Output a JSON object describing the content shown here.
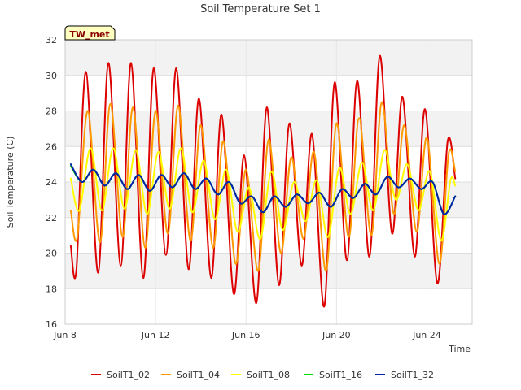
{
  "chart_data": {
    "type": "line",
    "title": "Soil Temperature Set 1",
    "xlabel": "Time",
    "ylabel": "Soil Temperature (C)",
    "badge": "TW_met",
    "x_start": "2024-06-08T00:00",
    "x_end": "2024-06-26T00:00",
    "xticks": [
      {
        "date": "2024-06-08",
        "label": "Jun 8"
      },
      {
        "date": "2024-06-12",
        "label": "Jun 12"
      },
      {
        "date": "2024-06-16",
        "label": "Jun 16"
      },
      {
        "date": "2024-06-20",
        "label": "Jun 20"
      },
      {
        "date": "2024-06-24",
        "label": "Jun 24"
      }
    ],
    "ylim": [
      16,
      32
    ],
    "yticks": [
      16,
      18,
      20,
      22,
      24,
      26,
      28,
      30,
      32
    ],
    "grid": true,
    "legend_position": "bottom",
    "series": [
      {
        "name": "SoilT1_02",
        "color": "#dd0000",
        "values": [
          [
            "2024-06-08T06:00",
            20.4
          ],
          [
            "2024-06-08T12:00",
            19.1
          ],
          [
            "2024-06-08T22:00",
            30.2
          ],
          [
            "2024-06-09T11:00",
            18.9
          ],
          [
            "2024-06-09T22:00",
            30.7
          ],
          [
            "2024-06-10T11:00",
            19.3
          ],
          [
            "2024-06-10T22:00",
            30.7
          ],
          [
            "2024-06-11T11:00",
            18.6
          ],
          [
            "2024-06-11T22:00",
            30.4
          ],
          [
            "2024-06-12T11:00",
            19.9
          ],
          [
            "2024-06-12T22:00",
            30.4
          ],
          [
            "2024-06-13T11:00",
            19.1
          ],
          [
            "2024-06-13T22:00",
            28.7
          ],
          [
            "2024-06-14T11:00",
            18.6
          ],
          [
            "2024-06-14T22:00",
            27.8
          ],
          [
            "2024-06-15T11:00",
            17.7
          ],
          [
            "2024-06-15T22:00",
            25.5
          ],
          [
            "2024-06-16T11:00",
            17.2
          ],
          [
            "2024-06-16T22:00",
            28.2
          ],
          [
            "2024-06-17T11:00",
            18.2
          ],
          [
            "2024-06-17T22:00",
            27.3
          ],
          [
            "2024-06-18T11:00",
            19.3
          ],
          [
            "2024-06-18T22:00",
            26.7
          ],
          [
            "2024-06-19T11:00",
            17.0
          ],
          [
            "2024-06-19T22:00",
            29.6
          ],
          [
            "2024-06-20T11:00",
            19.6
          ],
          [
            "2024-06-20T22:00",
            29.7
          ],
          [
            "2024-06-21T11:00",
            19.8
          ],
          [
            "2024-06-21T22:00",
            31.1
          ],
          [
            "2024-06-22T11:00",
            21.1
          ],
          [
            "2024-06-22T22:00",
            28.8
          ],
          [
            "2024-06-23T11:00",
            19.8
          ],
          [
            "2024-06-23T22:00",
            28.1
          ],
          [
            "2024-06-24T11:00",
            18.3
          ],
          [
            "2024-06-24T22:00",
            26.3
          ],
          [
            "2024-06-25T06:00",
            24.2
          ]
        ]
      },
      {
        "name": "SoilT1_04",
        "color": "#ff9900",
        "values": [
          [
            "2024-06-08T06:00",
            22.4
          ],
          [
            "2024-06-08T13:00",
            20.9
          ],
          [
            "2024-06-09T00:00",
            28.0
          ],
          [
            "2024-06-09T13:00",
            20.6
          ],
          [
            "2024-06-10T00:00",
            28.4
          ],
          [
            "2024-06-10T13:00",
            20.9
          ],
          [
            "2024-06-11T00:00",
            28.2
          ],
          [
            "2024-06-11T13:00",
            20.3
          ],
          [
            "2024-06-12T00:00",
            28.0
          ],
          [
            "2024-06-12T13:00",
            21.1
          ],
          [
            "2024-06-13T00:00",
            28.3
          ],
          [
            "2024-06-13T13:00",
            20.7
          ],
          [
            "2024-06-14T00:00",
            27.2
          ],
          [
            "2024-06-14T13:00",
            20.3
          ],
          [
            "2024-06-15T00:00",
            26.3
          ],
          [
            "2024-06-15T13:00",
            19.4
          ],
          [
            "2024-06-16T00:00",
            24.7
          ],
          [
            "2024-06-16T13:00",
            19.0
          ],
          [
            "2024-06-17T00:00",
            26.4
          ],
          [
            "2024-06-17T13:00",
            20.0
          ],
          [
            "2024-06-18T00:00",
            25.4
          ],
          [
            "2024-06-18T13:00",
            20.8
          ],
          [
            "2024-06-19T00:00",
            25.7
          ],
          [
            "2024-06-19T13:00",
            19.0
          ],
          [
            "2024-06-20T00:00",
            27.3
          ],
          [
            "2024-06-20T13:00",
            20.9
          ],
          [
            "2024-06-21T00:00",
            27.6
          ],
          [
            "2024-06-21T13:00",
            21.0
          ],
          [
            "2024-06-22T00:00",
            28.5
          ],
          [
            "2024-06-22T13:00",
            22.2
          ],
          [
            "2024-06-23T00:00",
            27.2
          ],
          [
            "2024-06-23T13:00",
            21.2
          ],
          [
            "2024-06-24T00:00",
            26.5
          ],
          [
            "2024-06-24T13:00",
            19.4
          ],
          [
            "2024-06-24T23:00",
            25.6
          ],
          [
            "2024-06-25T06:00",
            24.6
          ]
        ]
      },
      {
        "name": "SoilT1_08",
        "color": "#ffff00",
        "values": [
          [
            "2024-06-08T06:00",
            24.2
          ],
          [
            "2024-06-08T15:00",
            22.4
          ],
          [
            "2024-06-09T03:00",
            25.9
          ],
          [
            "2024-06-09T15:00",
            22.4
          ],
          [
            "2024-06-10T03:00",
            25.9
          ],
          [
            "2024-06-10T15:00",
            22.5
          ],
          [
            "2024-06-11T03:00",
            25.8
          ],
          [
            "2024-06-11T15:00",
            22.2
          ],
          [
            "2024-06-12T03:00",
            25.7
          ],
          [
            "2024-06-12T15:00",
            22.5
          ],
          [
            "2024-06-13T03:00",
            25.9
          ],
          [
            "2024-06-13T15:00",
            22.3
          ],
          [
            "2024-06-14T03:00",
            25.2
          ],
          [
            "2024-06-14T15:00",
            21.9
          ],
          [
            "2024-06-15T03:00",
            24.7
          ],
          [
            "2024-06-15T15:00",
            21.2
          ],
          [
            "2024-06-16T03:00",
            23.7
          ],
          [
            "2024-06-16T15:00",
            20.8
          ],
          [
            "2024-06-17T03:00",
            24.6
          ],
          [
            "2024-06-17T15:00",
            21.3
          ],
          [
            "2024-06-18T03:00",
            24.0
          ],
          [
            "2024-06-18T15:00",
            21.8
          ],
          [
            "2024-06-19T03:00",
            24.1
          ],
          [
            "2024-06-19T15:00",
            20.9
          ],
          [
            "2024-06-20T03:00",
            24.8
          ],
          [
            "2024-06-20T15:00",
            22.2
          ],
          [
            "2024-06-21T03:00",
            25.1
          ],
          [
            "2024-06-21T15:00",
            22.4
          ],
          [
            "2024-06-22T03:00",
            25.8
          ],
          [
            "2024-06-22T15:00",
            23.0
          ],
          [
            "2024-06-23T03:00",
            25.0
          ],
          [
            "2024-06-23T15:00",
            22.4
          ],
          [
            "2024-06-24T03:00",
            24.6
          ],
          [
            "2024-06-24T15:00",
            20.7
          ],
          [
            "2024-06-25T01:00",
            24.1
          ],
          [
            "2024-06-25T06:00",
            23.8
          ]
        ]
      },
      {
        "name": "SoilT1_16",
        "color": "#00dd00",
        "values": [
          [
            "2024-06-08T06:00",
            24.9
          ],
          [
            "2024-06-08T18:00",
            24.0
          ],
          [
            "2024-06-09T06:00",
            24.7
          ],
          [
            "2024-06-09T18:00",
            23.8
          ],
          [
            "2024-06-10T06:00",
            24.5
          ],
          [
            "2024-06-10T18:00",
            23.6
          ],
          [
            "2024-06-11T06:00",
            24.4
          ],
          [
            "2024-06-11T18:00",
            23.5
          ],
          [
            "2024-06-12T06:00",
            24.4
          ],
          [
            "2024-06-12T18:00",
            23.7
          ],
          [
            "2024-06-13T06:00",
            24.5
          ],
          [
            "2024-06-13T18:00",
            23.6
          ],
          [
            "2024-06-14T06:00",
            24.2
          ],
          [
            "2024-06-14T18:00",
            23.3
          ],
          [
            "2024-06-15T06:00",
            24.0
          ],
          [
            "2024-06-15T18:00",
            22.8
          ],
          [
            "2024-06-16T06:00",
            23.2
          ],
          [
            "2024-06-16T18:00",
            22.3
          ],
          [
            "2024-06-17T06:00",
            23.2
          ],
          [
            "2024-06-17T18:00",
            22.6
          ],
          [
            "2024-06-18T06:00",
            23.3
          ],
          [
            "2024-06-18T18:00",
            22.8
          ],
          [
            "2024-06-19T06:00",
            23.4
          ],
          [
            "2024-06-19T18:00",
            22.6
          ],
          [
            "2024-06-20T06:00",
            23.6
          ],
          [
            "2024-06-20T18:00",
            23.1
          ],
          [
            "2024-06-21T06:00",
            23.9
          ],
          [
            "2024-06-21T18:00",
            23.3
          ],
          [
            "2024-06-22T06:00",
            24.3
          ],
          [
            "2024-06-22T18:00",
            23.7
          ],
          [
            "2024-06-23T06:00",
            24.2
          ],
          [
            "2024-06-23T18:00",
            23.6
          ],
          [
            "2024-06-24T06:00",
            24.0
          ],
          [
            "2024-06-24T18:00",
            22.2
          ],
          [
            "2024-06-25T06:00",
            23.2
          ]
        ]
      },
      {
        "name": "SoilT1_32",
        "color": "#0022aa",
        "values": [
          [
            "2024-06-08T06:00",
            25.0
          ],
          [
            "2024-06-08T18:00",
            24.0
          ],
          [
            "2024-06-09T06:00",
            24.7
          ],
          [
            "2024-06-09T18:00",
            23.8
          ],
          [
            "2024-06-10T06:00",
            24.5
          ],
          [
            "2024-06-10T18:00",
            23.6
          ],
          [
            "2024-06-11T06:00",
            24.4
          ],
          [
            "2024-06-11T18:00",
            23.5
          ],
          [
            "2024-06-12T06:00",
            24.4
          ],
          [
            "2024-06-12T18:00",
            23.7
          ],
          [
            "2024-06-13T06:00",
            24.5
          ],
          [
            "2024-06-13T18:00",
            23.6
          ],
          [
            "2024-06-14T06:00",
            24.2
          ],
          [
            "2024-06-14T18:00",
            23.3
          ],
          [
            "2024-06-15T06:00",
            24.0
          ],
          [
            "2024-06-15T18:00",
            22.8
          ],
          [
            "2024-06-16T06:00",
            23.2
          ],
          [
            "2024-06-16T18:00",
            22.3
          ],
          [
            "2024-06-17T06:00",
            23.2
          ],
          [
            "2024-06-17T18:00",
            22.6
          ],
          [
            "2024-06-18T06:00",
            23.3
          ],
          [
            "2024-06-18T18:00",
            22.8
          ],
          [
            "2024-06-19T06:00",
            23.4
          ],
          [
            "2024-06-19T18:00",
            22.6
          ],
          [
            "2024-06-20T06:00",
            23.6
          ],
          [
            "2024-06-20T18:00",
            23.1
          ],
          [
            "2024-06-21T06:00",
            23.9
          ],
          [
            "2024-06-21T18:00",
            23.3
          ],
          [
            "2024-06-22T06:00",
            24.3
          ],
          [
            "2024-06-22T18:00",
            23.7
          ],
          [
            "2024-06-23T06:00",
            24.2
          ],
          [
            "2024-06-23T18:00",
            23.6
          ],
          [
            "2024-06-24T06:00",
            24.0
          ],
          [
            "2024-06-24T18:00",
            22.2
          ],
          [
            "2024-06-25T06:00",
            23.2
          ]
        ]
      }
    ]
  }
}
